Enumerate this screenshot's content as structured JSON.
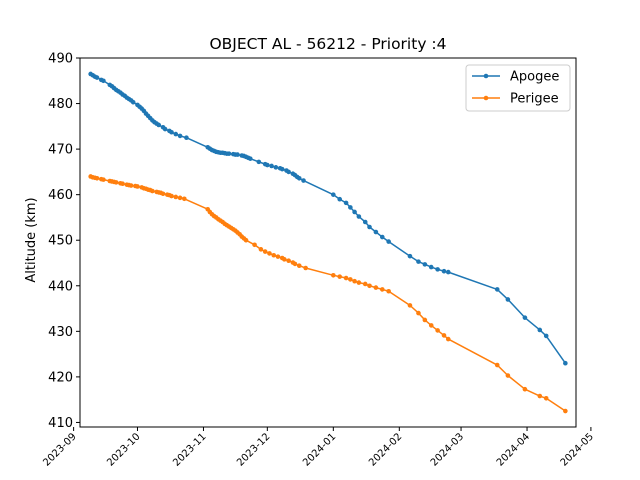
{
  "chart_data": {
    "type": "line",
    "title": "OBJECT AL - 56212 - Priority :4",
    "xlabel": "",
    "ylabel": "Altitude (km)",
    "ylim": [
      409,
      490
    ],
    "xlim": [
      "2023-09-04",
      "2024-04-24"
    ],
    "grid": false,
    "legend_position": "top-right",
    "y_ticks": [
      410,
      420,
      430,
      440,
      450,
      460,
      470,
      480,
      490
    ],
    "x_ticks": [
      "2023-09",
      "2023-10",
      "2023-11",
      "2023-12",
      "2024-01",
      "2024-02",
      "2024-03",
      "2024-04",
      "2024-05"
    ],
    "series": [
      {
        "name": "Apogee",
        "color": "#1f77b4",
        "points": [
          [
            "2023-09-09",
            486.5
          ],
          [
            "2023-09-10",
            486.2
          ],
          [
            "2023-09-11",
            485.9
          ],
          [
            "2023-09-12",
            485.7
          ],
          [
            "2023-09-14",
            485.2
          ],
          [
            "2023-09-15",
            485.0
          ],
          [
            "2023-09-18",
            484.1
          ],
          [
            "2023-09-19",
            483.8
          ],
          [
            "2023-09-20",
            483.4
          ],
          [
            "2023-09-21",
            483.0
          ],
          [
            "2023-09-22",
            482.7
          ],
          [
            "2023-09-23",
            482.4
          ],
          [
            "2023-09-24",
            482.0
          ],
          [
            "2023-09-25",
            481.7
          ],
          [
            "2023-09-26",
            481.3
          ],
          [
            "2023-09-27",
            481.0
          ],
          [
            "2023-09-28",
            480.7
          ],
          [
            "2023-09-29",
            480.3
          ],
          [
            "2023-10-01",
            479.7
          ],
          [
            "2023-10-02",
            479.3
          ],
          [
            "2023-10-03",
            478.9
          ],
          [
            "2023-10-04",
            478.4
          ],
          [
            "2023-10-05",
            477.8
          ],
          [
            "2023-10-06",
            477.3
          ],
          [
            "2023-10-07",
            476.8
          ],
          [
            "2023-10-08",
            476.3
          ],
          [
            "2023-10-09",
            475.9
          ],
          [
            "2023-10-10",
            475.6
          ],
          [
            "2023-10-11",
            475.3
          ],
          [
            "2023-10-13",
            474.8
          ],
          [
            "2023-10-14",
            474.4
          ],
          [
            "2023-10-16",
            474.0
          ],
          [
            "2023-10-17",
            473.7
          ],
          [
            "2023-10-19",
            473.3
          ],
          [
            "2023-10-21",
            472.9
          ],
          [
            "2023-10-24",
            472.5
          ],
          [
            "2023-11-03",
            470.4
          ],
          [
            "2023-11-04",
            470.1
          ],
          [
            "2023-11-05",
            469.8
          ],
          [
            "2023-11-06",
            469.6
          ],
          [
            "2023-11-07",
            469.4
          ],
          [
            "2023-11-08",
            469.3
          ],
          [
            "2023-11-09",
            469.2
          ],
          [
            "2023-11-10",
            469.2
          ],
          [
            "2023-11-11",
            469.1
          ],
          [
            "2023-11-12",
            469.0
          ],
          [
            "2023-11-13",
            469.0
          ],
          [
            "2023-11-15",
            468.9
          ],
          [
            "2023-11-16",
            468.8
          ],
          [
            "2023-11-17",
            468.8
          ],
          [
            "2023-11-19",
            468.6
          ],
          [
            "2023-11-20",
            468.5
          ],
          [
            "2023-11-21",
            468.3
          ],
          [
            "2023-11-22",
            468.1
          ],
          [
            "2023-11-23",
            467.9
          ],
          [
            "2023-11-27",
            467.2
          ],
          [
            "2023-11-30",
            466.7
          ],
          [
            "2023-12-01",
            466.5
          ],
          [
            "2023-12-03",
            466.3
          ],
          [
            "2023-12-05",
            466.0
          ],
          [
            "2023-12-07",
            465.8
          ],
          [
            "2023-12-08",
            465.6
          ],
          [
            "2023-12-10",
            465.3
          ],
          [
            "2023-12-11",
            465.0
          ],
          [
            "2023-12-13",
            464.6
          ],
          [
            "2023-12-14",
            464.3
          ],
          [
            "2023-12-15",
            463.9
          ],
          [
            "2023-12-16",
            463.6
          ],
          [
            "2023-12-18",
            463.1
          ],
          [
            "2024-01-01",
            460.0
          ],
          [
            "2024-01-04",
            459.0
          ],
          [
            "2024-01-07",
            458.2
          ],
          [
            "2024-01-09",
            457.2
          ],
          [
            "2024-01-11",
            456.2
          ],
          [
            "2024-01-13",
            455.2
          ],
          [
            "2024-01-16",
            454.0
          ],
          [
            "2024-01-18",
            452.9
          ],
          [
            "2024-01-21",
            451.8
          ],
          [
            "2024-01-24",
            450.7
          ],
          [
            "2024-01-27",
            449.7
          ],
          [
            "2024-02-06",
            446.5
          ],
          [
            "2024-02-10",
            445.3
          ],
          [
            "2024-02-13",
            444.7
          ],
          [
            "2024-02-16",
            444.1
          ],
          [
            "2024-02-19",
            443.6
          ],
          [
            "2024-02-22",
            443.2
          ],
          [
            "2024-02-24",
            443.0
          ],
          [
            "2024-03-18",
            439.2
          ],
          [
            "2024-03-23",
            437.0
          ],
          [
            "2024-03-31",
            433.0
          ],
          [
            "2024-04-07",
            430.3
          ],
          [
            "2024-04-10",
            429.0
          ],
          [
            "2024-04-19",
            423.0
          ]
        ]
      },
      {
        "name": "Perigee",
        "color": "#ff7f0e",
        "points": [
          [
            "2023-09-09",
            464.0
          ],
          [
            "2023-09-10",
            463.8
          ],
          [
            "2023-09-11",
            463.7
          ],
          [
            "2023-09-12",
            463.6
          ],
          [
            "2023-09-14",
            463.4
          ],
          [
            "2023-09-15",
            463.3
          ],
          [
            "2023-09-18",
            463.0
          ],
          [
            "2023-09-19",
            462.9
          ],
          [
            "2023-09-20",
            462.8
          ],
          [
            "2023-09-21",
            462.7
          ],
          [
            "2023-09-23",
            462.5
          ],
          [
            "2023-09-24",
            462.4
          ],
          [
            "2023-09-26",
            462.2
          ],
          [
            "2023-09-27",
            462.1
          ],
          [
            "2023-09-28",
            462.0
          ],
          [
            "2023-09-30",
            461.9
          ],
          [
            "2023-10-01",
            461.8
          ],
          [
            "2023-10-03",
            461.6
          ],
          [
            "2023-10-04",
            461.4
          ],
          [
            "2023-10-05",
            461.3
          ],
          [
            "2023-10-06",
            461.1
          ],
          [
            "2023-10-07",
            461.0
          ],
          [
            "2023-10-08",
            460.8
          ],
          [
            "2023-10-10",
            460.6
          ],
          [
            "2023-10-11",
            460.5
          ],
          [
            "2023-10-12",
            460.4
          ],
          [
            "2023-10-13",
            460.2
          ],
          [
            "2023-10-15",
            460.0
          ],
          [
            "2023-10-16",
            459.9
          ],
          [
            "2023-10-17",
            459.7
          ],
          [
            "2023-10-19",
            459.5
          ],
          [
            "2023-10-21",
            459.3
          ],
          [
            "2023-10-23",
            459.1
          ],
          [
            "2023-11-03",
            456.8
          ],
          [
            "2023-11-04",
            456.2
          ],
          [
            "2023-11-05",
            455.7
          ],
          [
            "2023-11-06",
            455.3
          ],
          [
            "2023-11-07",
            455.0
          ],
          [
            "2023-11-08",
            454.6
          ],
          [
            "2023-11-09",
            454.3
          ],
          [
            "2023-11-10",
            454.0
          ],
          [
            "2023-11-11",
            453.6
          ],
          [
            "2023-11-12",
            453.3
          ],
          [
            "2023-11-13",
            453.0
          ],
          [
            "2023-11-14",
            452.7
          ],
          [
            "2023-11-15",
            452.4
          ],
          [
            "2023-11-16",
            452.1
          ],
          [
            "2023-11-17",
            451.7
          ],
          [
            "2023-11-18",
            451.3
          ],
          [
            "2023-11-19",
            450.8
          ],
          [
            "2023-11-20",
            450.4
          ],
          [
            "2023-11-21",
            450.0
          ],
          [
            "2023-11-25",
            449.0
          ],
          [
            "2023-11-28",
            448.0
          ],
          [
            "2023-11-30",
            447.5
          ],
          [
            "2023-12-02",
            447.1
          ],
          [
            "2023-12-04",
            446.7
          ],
          [
            "2023-12-06",
            446.4
          ],
          [
            "2023-12-08",
            446.1
          ],
          [
            "2023-12-09",
            445.8
          ],
          [
            "2023-12-11",
            445.5
          ],
          [
            "2023-12-13",
            445.1
          ],
          [
            "2023-12-14",
            444.8
          ],
          [
            "2023-12-16",
            444.4
          ],
          [
            "2023-12-19",
            443.9
          ],
          [
            "2024-01-01",
            442.3
          ],
          [
            "2024-01-04",
            442.0
          ],
          [
            "2024-01-07",
            441.7
          ],
          [
            "2024-01-09",
            441.4
          ],
          [
            "2024-01-11",
            441.0
          ],
          [
            "2024-01-13",
            440.7
          ],
          [
            "2024-01-16",
            440.4
          ],
          [
            "2024-01-18",
            440.0
          ],
          [
            "2024-01-21",
            439.6
          ],
          [
            "2024-01-24",
            439.2
          ],
          [
            "2024-01-27",
            438.8
          ],
          [
            "2024-02-06",
            435.7
          ],
          [
            "2024-02-10",
            434.0
          ],
          [
            "2024-02-13",
            432.5
          ],
          [
            "2024-02-16",
            431.3
          ],
          [
            "2024-02-19",
            430.2
          ],
          [
            "2024-02-22",
            429.1
          ],
          [
            "2024-02-24",
            428.3
          ],
          [
            "2024-03-18",
            422.6
          ],
          [
            "2024-03-23",
            420.3
          ],
          [
            "2024-03-31",
            417.3
          ],
          [
            "2024-04-07",
            415.8
          ],
          [
            "2024-04-10",
            415.3
          ],
          [
            "2024-04-19",
            412.5
          ]
        ]
      }
    ]
  }
}
